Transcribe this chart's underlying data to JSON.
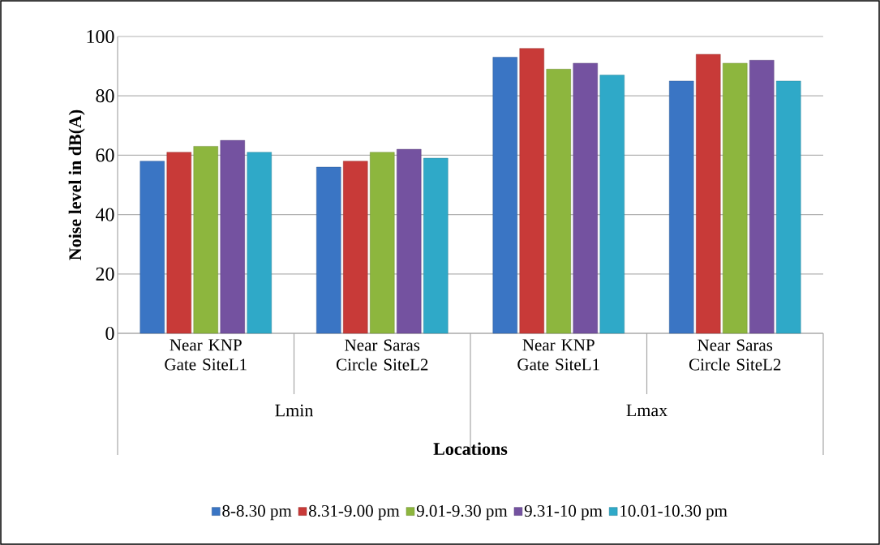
{
  "chart_data": {
    "type": "bar",
    "xlabel": "Locations",
    "ylabel": "Noise level in dB(A)",
    "categories": [
      "Near KNP Gate SiteL1",
      "Near Saras Circle SiteL2",
      "Near KNP Gate SiteL1",
      "Near Saras Circle SiteL2"
    ],
    "series": [
      {
        "name": "8-8.30 pm",
        "color": "#3a75c4",
        "values": [
          58,
          56,
          93,
          85
        ]
      },
      {
        "name": "8.31-9.00 pm",
        "color": "#c83a38",
        "values": [
          61,
          58,
          96,
          94
        ]
      },
      {
        "name": "9.01-9.30 pm",
        "color": "#8db63e",
        "values": [
          63,
          61,
          89,
          91
        ]
      },
      {
        "name": "9.31-10 pm",
        "color": "#7452a0",
        "values": [
          65,
          62,
          91,
          92
        ]
      },
      {
        "name": "10.01-10.30 pm",
        "color": "#2fa9c8",
        "values": [
          61,
          59,
          87,
          85
        ]
      }
    ],
    "ylim": [
      0,
      100
    ],
    "yticks": [
      0,
      20,
      40,
      60,
      80,
      100
    ],
    "grid": "y",
    "legend": "bottom",
    "annotations": [
      "Lmin",
      "Lmax"
    ]
  }
}
